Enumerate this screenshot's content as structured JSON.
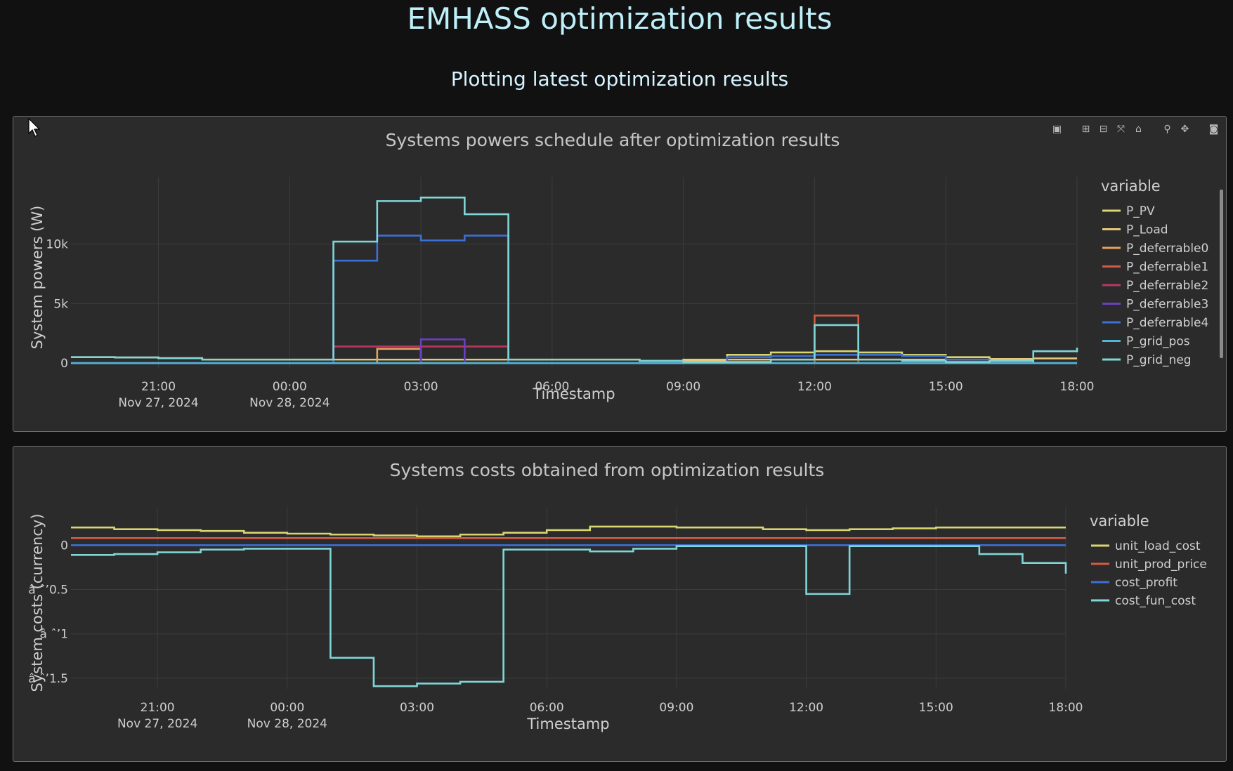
{
  "page": {
    "title": "EMHASS optimization results",
    "subtitle": "Plotting latest optimization results"
  },
  "colors": {
    "background": "#111112",
    "panel": "#2b2b2c",
    "grid": "#3c3c3c",
    "axis_text": "#cfcfcf",
    "title_text": "#c7c7c7"
  },
  "modebar": {
    "icons": [
      "plotly-logo-icon",
      "zoom-in-icon",
      "zoom-out-icon",
      "autoscale-icon",
      "reset-axes-icon",
      "zoom-icon",
      "pan-icon",
      "camera-icon"
    ]
  },
  "chart_data": [
    {
      "type": "line",
      "title": "Systems powers schedule after optimization results",
      "xlabel": "Timestamp",
      "ylabel": "System powers (W)",
      "x": [
        "2024-11-27 19:00",
        "2024-11-27 20:00",
        "2024-11-27 21:00",
        "2024-11-27 22:00",
        "2024-11-27 23:00",
        "2024-11-28 00:00",
        "2024-11-28 01:00",
        "2024-11-28 02:00",
        "2024-11-28 03:00",
        "2024-11-28 04:00",
        "2024-11-28 05:00",
        "2024-11-28 06:00",
        "2024-11-28 07:00",
        "2024-11-28 08:00",
        "2024-11-28 09:00",
        "2024-11-28 10:00",
        "2024-11-28 11:00",
        "2024-11-28 12:00",
        "2024-11-28 13:00",
        "2024-11-28 14:00",
        "2024-11-28 15:00",
        "2024-11-28 16:00",
        "2024-11-28 17:00",
        "2024-11-28 18:00"
      ],
      "x_ticks": [
        {
          "time": "2024-11-27 21:00",
          "label": "21:00",
          "sublabel": "Nov 27, 2024"
        },
        {
          "time": "2024-11-28 00:00",
          "label": "00:00",
          "sublabel": "Nov 28, 2024"
        },
        {
          "time": "2024-11-28 03:00",
          "label": "03:00",
          "sublabel": ""
        },
        {
          "time": "2024-11-28 06:00",
          "label": "06:00",
          "sublabel": ""
        },
        {
          "time": "2024-11-28 09:00",
          "label": "09:00",
          "sublabel": ""
        },
        {
          "time": "2024-11-28 12:00",
          "label": "12:00",
          "sublabel": ""
        },
        {
          "time": "2024-11-28 15:00",
          "label": "15:00",
          "sublabel": ""
        },
        {
          "time": "2024-11-28 18:00",
          "label": "18:00",
          "sublabel": ""
        }
      ],
      "xlim": [
        "2024-11-27 19:00",
        "2024-11-28 18:00"
      ],
      "y_ticks": [
        {
          "value": 0,
          "label": "0"
        },
        {
          "value": 5000,
          "label": "5k"
        },
        {
          "value": 10000,
          "label": "10k"
        }
      ],
      "ylim": [
        -400,
        14800
      ],
      "grid": true,
      "legend": {
        "title": "variable",
        "position": "right"
      },
      "series": [
        {
          "name": "P_PV",
          "color": "#d8d66f",
          "values": [
            0,
            0,
            0,
            0,
            0,
            0,
            0,
            0,
            0,
            0,
            0,
            0,
            0,
            0,
            300,
            700,
            900,
            1000,
            900,
            700,
            500,
            200,
            0,
            0
          ]
        },
        {
          "name": "P_Load",
          "color": "#e6c77a",
          "values": [
            500,
            480,
            420,
            300,
            300,
            300,
            300,
            300,
            300,
            300,
            300,
            300,
            300,
            200,
            200,
            300,
            300,
            300,
            300,
            300,
            300,
            350,
            400,
            400
          ]
        },
        {
          "name": "P_deferrable0",
          "color": "#e2a160",
          "values": [
            0,
            0,
            0,
            0,
            0,
            0,
            0,
            1200,
            0,
            0,
            0,
            0,
            0,
            0,
            0,
            0,
            0,
            0,
            0,
            0,
            0,
            0,
            0,
            0
          ]
        },
        {
          "name": "P_deferrable1",
          "color": "#d65a43",
          "values": [
            0,
            0,
            0,
            0,
            0,
            0,
            0,
            0,
            0,
            0,
            0,
            0,
            0,
            0,
            0,
            0,
            0,
            4000,
            0,
            0,
            0,
            0,
            0,
            0
          ]
        },
        {
          "name": "P_deferrable2",
          "color": "#b7385f",
          "values": [
            0,
            0,
            0,
            0,
            0,
            0,
            1400,
            1400,
            1400,
            1400,
            0,
            0,
            0,
            0,
            0,
            0,
            0,
            0,
            0,
            0,
            0,
            0,
            0,
            0
          ]
        },
        {
          "name": "P_deferrable3",
          "color": "#6b3fc1",
          "values": [
            0,
            0,
            0,
            0,
            0,
            0,
            0,
            0,
            2000,
            0,
            0,
            0,
            0,
            0,
            0,
            0,
            0,
            0,
            0,
            0,
            0,
            0,
            0,
            0
          ]
        },
        {
          "name": "P_deferrable4",
          "color": "#3d6fd4",
          "values": [
            0,
            0,
            0,
            0,
            0,
            0,
            8600,
            10700,
            10300,
            10700,
            0,
            0,
            0,
            0,
            0,
            500,
            600,
            700,
            700,
            600,
            300,
            0,
            0,
            0
          ]
        },
        {
          "name": "P_grid_pos",
          "color": "#4fb6d6",
          "values": [
            0,
            0,
            0,
            0,
            0,
            0,
            0,
            0,
            0,
            0,
            0,
            0,
            0,
            0,
            0,
            0,
            0,
            0,
            0,
            0,
            0,
            0,
            0,
            0
          ]
        },
        {
          "name": "P_grid_neg",
          "color": "#7fd6d6",
          "values": [
            500,
            480,
            420,
            300,
            300,
            300,
            10200,
            13600,
            13900,
            12500,
            300,
            300,
            300,
            200,
            100,
            100,
            300,
            3200,
            300,
            200,
            100,
            200,
            1000,
            1300
          ]
        }
      ]
    },
    {
      "type": "line",
      "title": "Systems costs obtained from optimization results",
      "xlabel": "Timestamp",
      "ylabel": "System costs (currency)",
      "x": [
        "2024-11-27 19:00",
        "2024-11-27 20:00",
        "2024-11-27 21:00",
        "2024-11-27 22:00",
        "2024-11-27 23:00",
        "2024-11-28 00:00",
        "2024-11-28 01:00",
        "2024-11-28 02:00",
        "2024-11-28 03:00",
        "2024-11-28 04:00",
        "2024-11-28 05:00",
        "2024-11-28 06:00",
        "2024-11-28 07:00",
        "2024-11-28 08:00",
        "2024-11-28 09:00",
        "2024-11-28 10:00",
        "2024-11-28 11:00",
        "2024-11-28 12:00",
        "2024-11-28 13:00",
        "2024-11-28 14:00",
        "2024-11-28 15:00",
        "2024-11-28 16:00",
        "2024-11-28 17:00",
        "2024-11-28 18:00"
      ],
      "x_ticks": [
        {
          "time": "2024-11-27 21:00",
          "label": "21:00",
          "sublabel": "Nov 27, 2024"
        },
        {
          "time": "2024-11-28 00:00",
          "label": "00:00",
          "sublabel": "Nov 28, 2024"
        },
        {
          "time": "2024-11-28 03:00",
          "label": "03:00",
          "sublabel": ""
        },
        {
          "time": "2024-11-28 06:00",
          "label": "06:00",
          "sublabel": ""
        },
        {
          "time": "2024-11-28 09:00",
          "label": "09:00",
          "sublabel": ""
        },
        {
          "time": "2024-11-28 12:00",
          "label": "12:00",
          "sublabel": ""
        },
        {
          "time": "2024-11-28 15:00",
          "label": "15:00",
          "sublabel": ""
        },
        {
          "time": "2024-11-28 18:00",
          "label": "18:00",
          "sublabel": ""
        }
      ],
      "xlim": [
        "2024-11-27 19:00",
        "2024-11-28 18:00"
      ],
      "y_ticks": [
        {
          "value": 0,
          "label": "0"
        },
        {
          "value": -0.5,
          "label": "â ˆ’0.5"
        },
        {
          "value": -1,
          "label": "â ˆ’1"
        },
        {
          "value": -1.5,
          "label": "â ˆ’1.5"
        }
      ],
      "ylim": [
        -1.62,
        0.32
      ],
      "grid": true,
      "legend": {
        "title": "variable",
        "position": "right"
      },
      "series": [
        {
          "name": "unit_load_cost",
          "color": "#d8d66f",
          "values": [
            0.2,
            0.18,
            0.17,
            0.16,
            0.14,
            0.13,
            0.12,
            0.11,
            0.1,
            0.12,
            0.14,
            0.17,
            0.21,
            0.21,
            0.2,
            0.2,
            0.18,
            0.17,
            0.18,
            0.19,
            0.2,
            0.2,
            0.2,
            0.2
          ]
        },
        {
          "name": "unit_prod_price",
          "color": "#d65a43",
          "values": [
            0.08,
            0.08,
            0.08,
            0.08,
            0.08,
            0.08,
            0.08,
            0.08,
            0.08,
            0.08,
            0.08,
            0.08,
            0.08,
            0.08,
            0.08,
            0.08,
            0.08,
            0.08,
            0.08,
            0.08,
            0.08,
            0.08,
            0.08,
            0.08
          ]
        },
        {
          "name": "cost_profit",
          "color": "#3d6fd4",
          "values": [
            0,
            0,
            0,
            0,
            0,
            0,
            0,
            0,
            0,
            0,
            0,
            0,
            0,
            0,
            0,
            0,
            0,
            0,
            0,
            0,
            0,
            0,
            0,
            0
          ]
        },
        {
          "name": "cost_fun_cost",
          "color": "#7fd6d6",
          "values": [
            -0.11,
            -0.1,
            -0.08,
            -0.05,
            -0.04,
            -0.04,
            -1.27,
            -1.59,
            -1.56,
            -1.54,
            -0.05,
            -0.05,
            -0.07,
            -0.04,
            -0.01,
            -0.01,
            -0.01,
            -0.55,
            -0.01,
            -0.01,
            -0.01,
            -0.1,
            -0.2,
            -0.32
          ]
        }
      ]
    }
  ]
}
